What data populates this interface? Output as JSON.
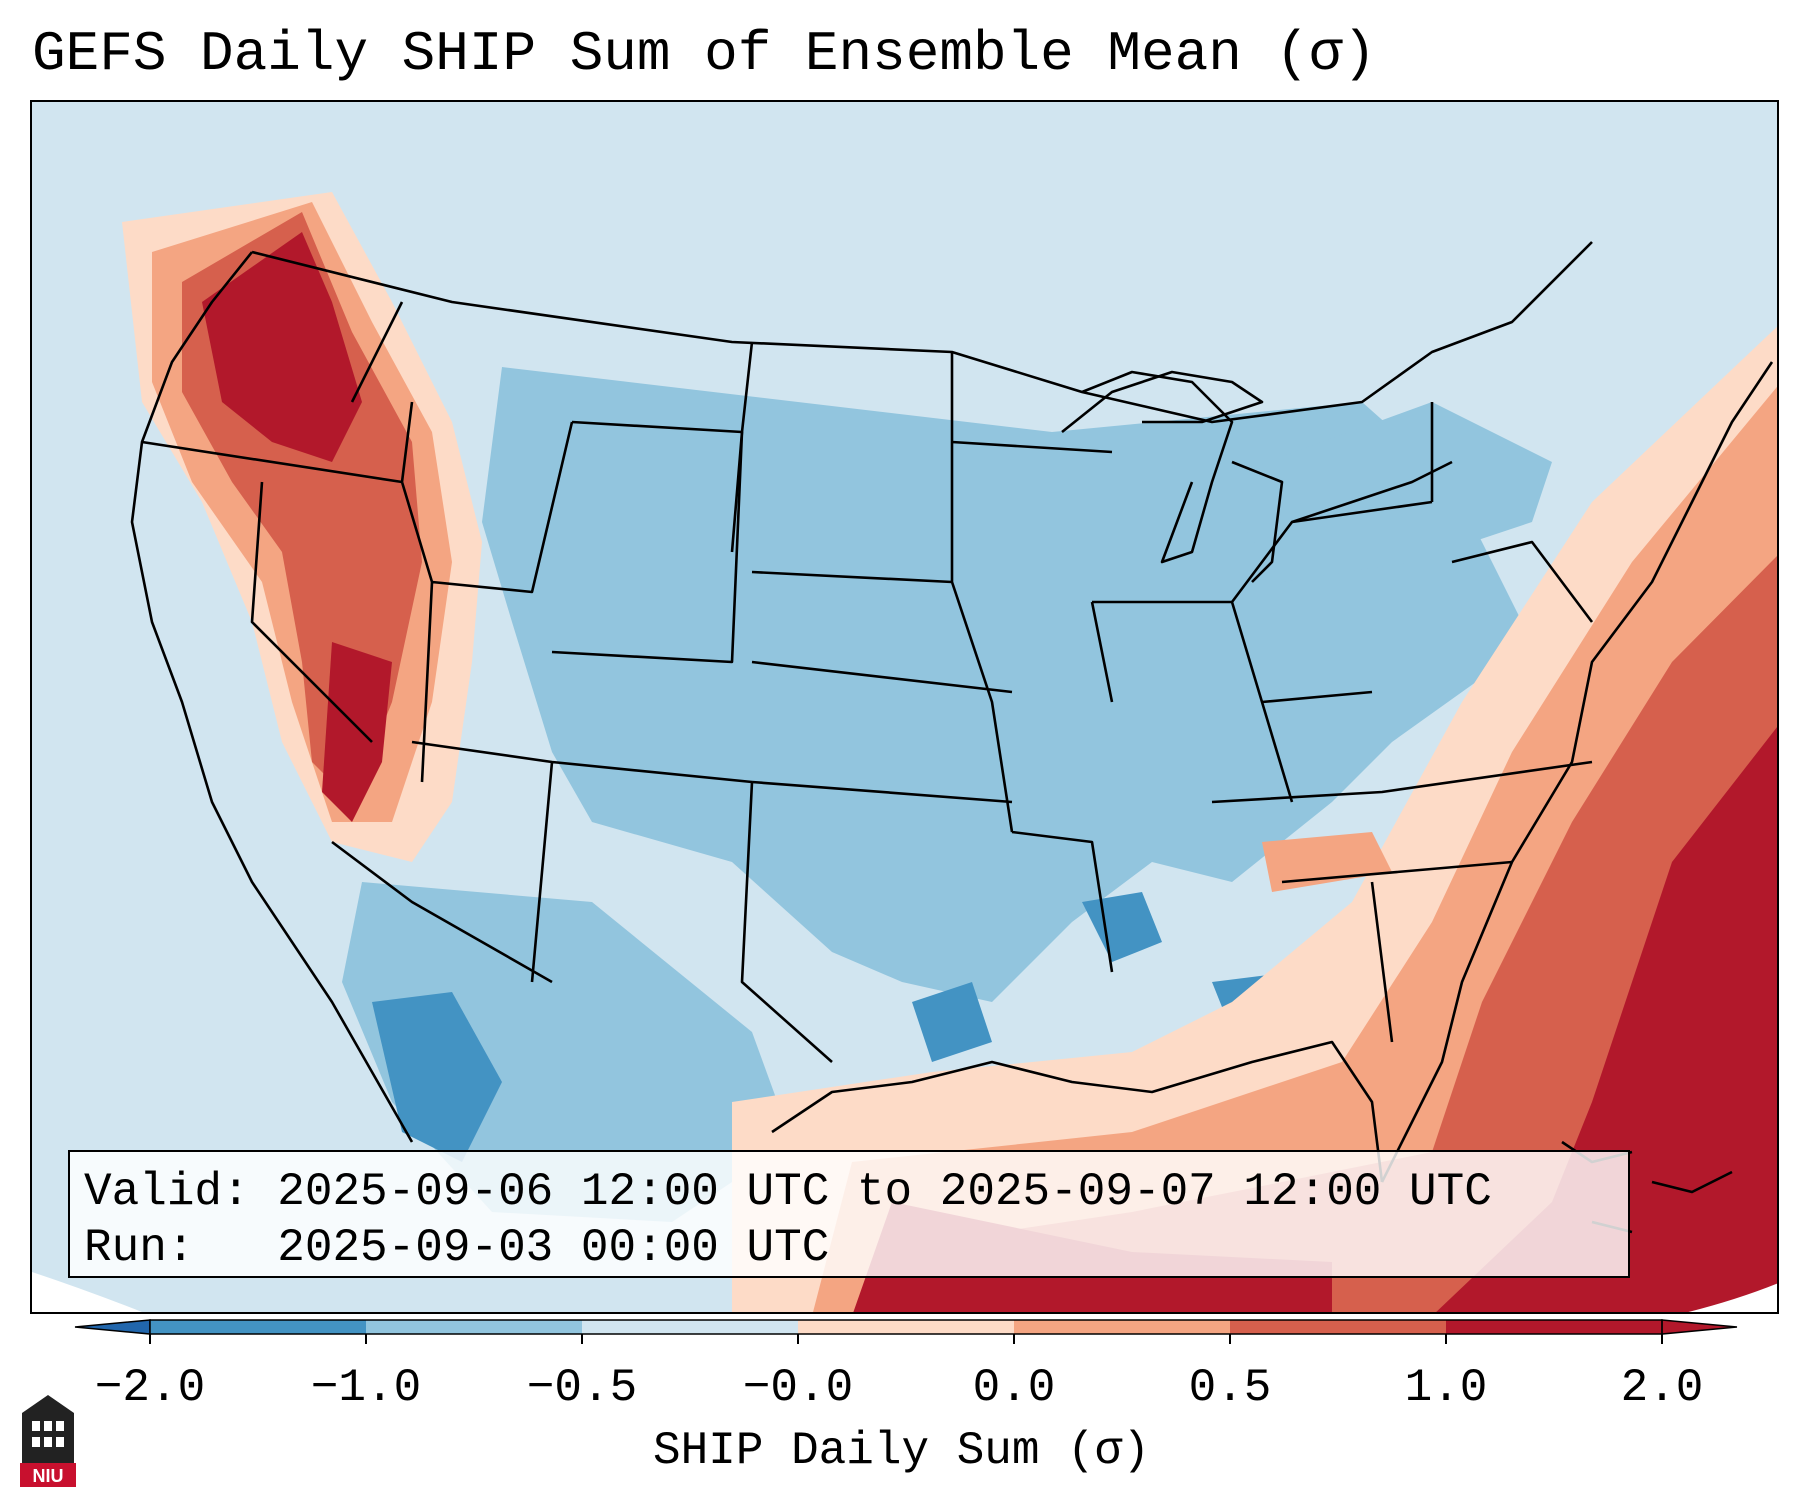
{
  "title": "GEFS Daily SHIP Sum of Ensemble Mean (σ)",
  "info": {
    "valid_line": "Valid: 2025-09-06 12:00 UTC to 2025-09-07 12:00 UTC",
    "run_line": "Run:   2025-09-03 00:00 UTC"
  },
  "colorbar": {
    "label": "SHIP Daily Sum (σ)",
    "tick_labels": [
      "−2.0",
      "−1.0",
      "−0.5",
      "−0.0",
      "0.0",
      "0.5",
      "1.0",
      "2.0"
    ],
    "colors": [
      "#4393c3",
      "#92c5de",
      "#d1e5f0",
      "#fddbc7",
      "#f4a582",
      "#d6604d",
      "#b2182b"
    ],
    "under_color": "#2166ac",
    "over_color": "#b2182b",
    "boundaries": [
      -2.0,
      -1.0,
      -0.5,
      0.0,
      0.0,
      0.5,
      1.0,
      2.0
    ]
  },
  "map": {
    "region": "Contiguous United States",
    "field": "GEFS daily SHIP sum, ensemble mean anomaly (σ)"
  },
  "logo": {
    "text": "NIU"
  }
}
